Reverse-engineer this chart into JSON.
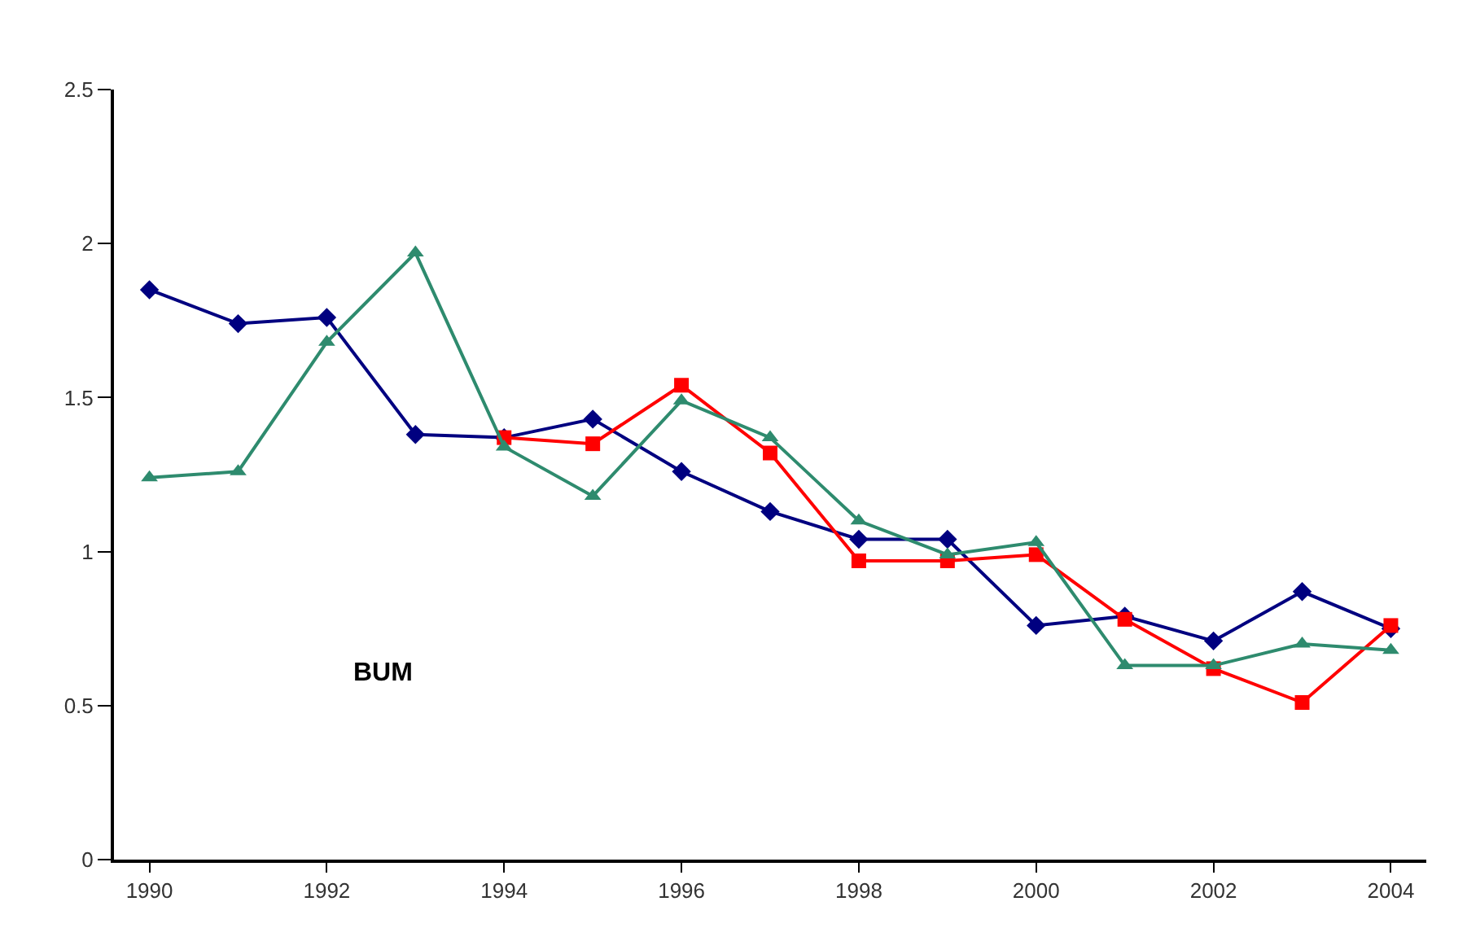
{
  "chart_data": {
    "type": "line",
    "x": [
      1990,
      1991,
      1992,
      1993,
      1994,
      1995,
      1996,
      1997,
      1998,
      1999,
      2000,
      2001,
      2002,
      2003,
      2004
    ],
    "xlim": [
      1989.6,
      2004.4
    ],
    "xticks": [
      1990,
      1992,
      1994,
      1996,
      1998,
      2000,
      2002,
      2004
    ],
    "ylim": [
      0,
      2.5
    ],
    "yticks": [
      0,
      0.5,
      1,
      1.5,
      2,
      2.5
    ],
    "line_style": "solid",
    "annotations": [
      "BUM"
    ],
    "series": [
      {
        "color": "#000080",
        "marker": "diamond",
        "values": [
          1.85,
          1.74,
          1.76,
          1.38,
          1.37,
          1.43,
          1.26,
          1.13,
          1.04,
          1.04,
          0.76,
          0.79,
          0.71,
          0.87,
          0.75
        ]
      },
      {
        "color": "#ff0000",
        "marker": "square",
        "values": [
          null,
          null,
          null,
          null,
          1.37,
          1.35,
          1.54,
          1.32,
          0.97,
          0.97,
          0.99,
          0.78,
          0.62,
          0.51,
          0.76
        ]
      },
      {
        "color": "#2e8b6e",
        "marker": "triangle",
        "values": [
          1.24,
          1.26,
          1.68,
          1.97,
          1.34,
          1.18,
          1.49,
          1.37,
          1.1,
          0.99,
          1.03,
          0.63,
          0.63,
          0.7,
          0.68
        ]
      }
    ]
  }
}
